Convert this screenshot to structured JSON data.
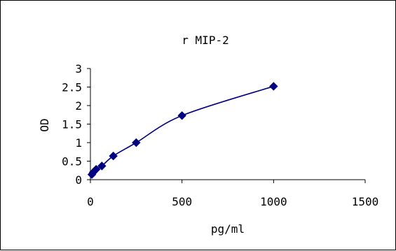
{
  "chart_data": {
    "type": "scatter",
    "title": "r MIP-2",
    "xlabel": "pg/ml",
    "ylabel": "OD",
    "xlim": [
      0,
      1500
    ],
    "ylim": [
      0,
      3
    ],
    "xticks": [
      "0",
      "500",
      "1000",
      "1500"
    ],
    "yticks": [
      "0",
      "0.5",
      "1",
      "1.5",
      "2",
      "2.5",
      "3"
    ],
    "grid": false,
    "legend": "none",
    "series": [
      {
        "x": [
          7.8,
          15.6,
          31.25,
          62.5,
          125,
          250,
          500,
          1000
        ],
        "y": [
          0.14,
          0.2,
          0.28,
          0.37,
          0.64,
          1.0,
          1.73,
          2.52
        ],
        "marker": "diamond",
        "line": "smooth"
      }
    ],
    "colors": {
      "series": "#000080",
      "axis": "#000000"
    }
  }
}
